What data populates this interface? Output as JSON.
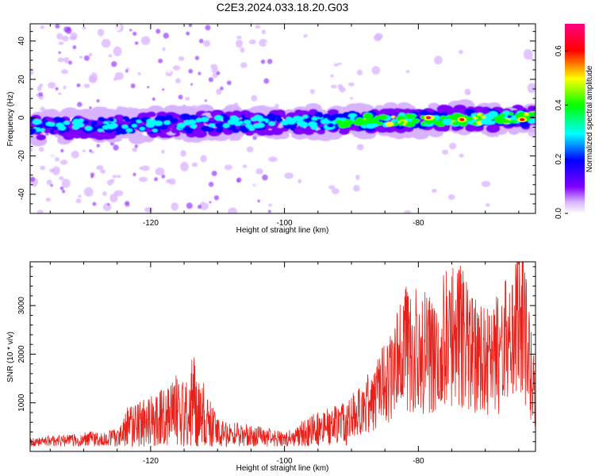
{
  "title": "C2E3.2024.033.18.20.G03",
  "chart_data": [
    {
      "type": "heatmap",
      "title": "C2E3.2024.033.18.20.G03",
      "xlabel": "Height of straight line (km)",
      "ylabel": "Frequency (Hz)",
      "xlim": [
        -138,
        -62.5
      ],
      "ylim": [
        -50,
        49
      ],
      "xticks": [
        -120,
        -100,
        -80
      ],
      "xtick_labels": [
        "-120",
        "-100",
        "-80"
      ],
      "yticks": [
        -40,
        -20,
        0,
        20,
        40
      ],
      "ytick_labels": [
        "-40",
        "-20",
        "0",
        "20",
        "40"
      ],
      "signal_band": {
        "description": "strong spectral amplitude band centred near 0 Hz across all heights",
        "center_hz_at_start": -5,
        "center_hz_at_end": 0,
        "half_width_hz": 5
      },
      "peak_amplitude_points": [
        {
          "x": -78.5,
          "y": 0,
          "value": 0.7
        },
        {
          "x": -73.5,
          "y": -1,
          "value": 0.65
        },
        {
          "x": -64.5,
          "y": -1,
          "value": 0.6
        }
      ],
      "colorbar": {
        "label": "Normalized spectral amplitude",
        "range": [
          0,
          0.7
        ],
        "ticks": [
          0.0,
          0.2,
          0.4,
          0.6
        ],
        "tick_labels": [
          "0.0",
          "0.2",
          "0.4",
          "0.6"
        ],
        "colors": [
          "#ffffff",
          "#d9b3ff",
          "#8000ff",
          "#0000ff",
          "#00ffff",
          "#00ff00",
          "#ffff00",
          "#ff0000",
          "#ff0080"
        ]
      }
    },
    {
      "type": "line",
      "xlabel": "Height of straight line (km)",
      "ylabel": "SNR (10 * v/v)",
      "xlim": [
        -138,
        -62.5
      ],
      "ylim": [
        0,
        3900
      ],
      "xticks": [
        -120,
        -100,
        -80
      ],
      "xtick_labels": [
        "-120",
        "-100",
        "-80"
      ],
      "yticks": [
        1000,
        2000,
        3000
      ],
      "ytick_labels": [
        "1000",
        "2000",
        "3000"
      ],
      "line_color": "#e8201a",
      "key_points": [
        {
          "x": -138,
          "y": 200
        },
        {
          "x": -125,
          "y": 400
        },
        {
          "x": -123.5,
          "y": 900
        },
        {
          "x": -118.5,
          "y": 1250
        },
        {
          "x": -113.5,
          "y": 1930
        },
        {
          "x": -110,
          "y": 650
        },
        {
          "x": -100,
          "y": 350
        },
        {
          "x": -95,
          "y": 800
        },
        {
          "x": -90,
          "y": 1100
        },
        {
          "x": -86.5,
          "y": 1600
        },
        {
          "x": -83.5,
          "y": 2500
        },
        {
          "x": -81.5,
          "y": 3200
        },
        {
          "x": -78,
          "y": 2900
        },
        {
          "x": -75,
          "y": 3600
        },
        {
          "x": -73.5,
          "y": 3450
        },
        {
          "x": -72,
          "y": 3150
        },
        {
          "x": -70,
          "y": 2700
        },
        {
          "x": -66,
          "y": 3400
        },
        {
          "x": -64.5,
          "y": 3900
        },
        {
          "x": -62.5,
          "y": 1700
        }
      ]
    }
  ]
}
